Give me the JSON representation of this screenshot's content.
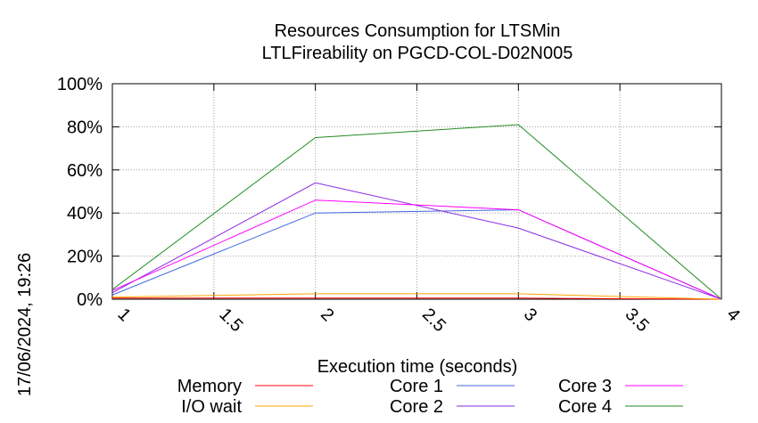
{
  "chart_data": {
    "type": "line",
    "title": [
      "Resources Consumption for LTSMin",
      "LTLFireability on PGCD-COL-D02N005"
    ],
    "xlabel": "Execution time (seconds)",
    "ylabel": "",
    "x_ticks": [
      "1",
      "1.5",
      "2",
      "2.5",
      "3",
      "3.5",
      "4"
    ],
    "y_ticks": [
      "0%",
      "20%",
      "40%",
      "60%",
      "80%",
      "100%"
    ],
    "xlim": [
      1,
      4
    ],
    "ylim": [
      0,
      100
    ],
    "grid": true,
    "legend_placement": "bottom",
    "timestamp": "17/06/2024, 19:26",
    "series": [
      {
        "name": "Memory",
        "color": "#ff0000",
        "x": [
          1,
          2,
          3,
          4
        ],
        "values": [
          0.5,
          0.5,
          0.5,
          0
        ]
      },
      {
        "name": "I/O wait",
        "color": "#ffa500",
        "x": [
          1,
          2,
          3,
          4
        ],
        "values": [
          1,
          2.5,
          2.5,
          0
        ]
      },
      {
        "name": "Core 1",
        "color": "#4169e1",
        "x": [
          1,
          2,
          3,
          4
        ],
        "values": [
          2,
          40,
          41.5,
          0
        ]
      },
      {
        "name": "Core 2",
        "color": "#8a2be2",
        "x": [
          1,
          2,
          3,
          4
        ],
        "values": [
          3,
          54,
          33,
          0
        ]
      },
      {
        "name": "Core 3",
        "color": "#ff00ff",
        "x": [
          1,
          2,
          3,
          4
        ],
        "values": [
          4,
          46,
          41.5,
          0
        ]
      },
      {
        "name": "Core 4",
        "color": "#228b22",
        "x": [
          1,
          2,
          3,
          4
        ],
        "values": [
          4.5,
          75,
          81,
          0
        ]
      }
    ]
  }
}
